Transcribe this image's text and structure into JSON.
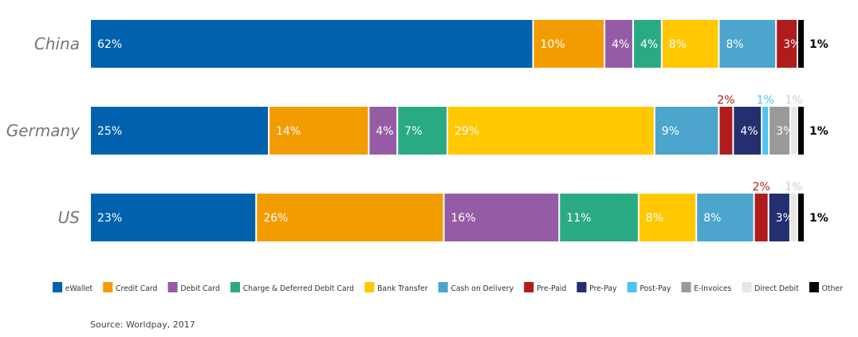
{
  "chart_data": {
    "type": "bar",
    "orientation": "horizontal",
    "stacked": true,
    "categories": [
      "China",
      "Germany",
      "US"
    ],
    "series": [
      {
        "name": "eWallet",
        "color": "#0062AE",
        "values": [
          62,
          25,
          23
        ]
      },
      {
        "name": "Credit Card",
        "color": "#F39C00",
        "values": [
          10,
          14,
          26
        ]
      },
      {
        "name": "Debit Card",
        "color": "#955CA5",
        "values": [
          4,
          4,
          16
        ]
      },
      {
        "name": "Charge & Deferred Debit Card",
        "color": "#2AAA83",
        "values": [
          4,
          7,
          11
        ]
      },
      {
        "name": "Bank Transfer",
        "color": "#FFC800",
        "values": [
          8,
          29,
          8
        ]
      },
      {
        "name": "Cash on Delivery",
        "color": "#4BA5CD",
        "values": [
          8,
          9,
          8
        ]
      },
      {
        "name": "Pre-Paid",
        "color": "#B01C1C",
        "values": [
          3,
          2,
          2
        ]
      },
      {
        "name": "Pre-Pay",
        "color": "#232F6E",
        "values": [
          0,
          4,
          3
        ]
      },
      {
        "name": "Post-Pay",
        "color": "#4DC3F2",
        "values": [
          0,
          1,
          0
        ]
      },
      {
        "name": "E-Invoices",
        "color": "#9A9A9A",
        "values": [
          0,
          3,
          0
        ]
      },
      {
        "name": "Direct Debit",
        "color": "#E6E6E6",
        "values": [
          0,
          1,
          1
        ]
      },
      {
        "name": "Other",
        "color": "#000000",
        "values": [
          1,
          1,
          1
        ]
      }
    ],
    "labels": [
      [
        "62%",
        "10%",
        "4%",
        "4%",
        "8%",
        "8%",
        "3%",
        "",
        "",
        "",
        "",
        "1%"
      ],
      [
        "25%",
        "14%",
        "4%",
        "7%",
        "29%",
        "9%",
        "2%",
        "4%",
        "1%",
        "3%",
        "1%",
        "1%"
      ],
      [
        "23%",
        "26%",
        "16%",
        "11%",
        "8%",
        "8%",
        "2%",
        "3%",
        "",
        "",
        "1%",
        "1%"
      ]
    ],
    "legend_position": "bottom",
    "grid": false
  },
  "source": "Source: Worldpay, 2017"
}
